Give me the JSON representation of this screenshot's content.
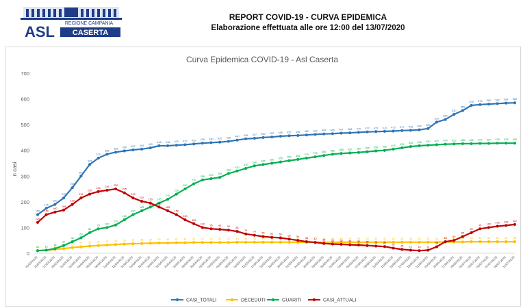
{
  "header": {
    "logo_line1": "REGIONE CAMPANIA",
    "logo_line2": "ASL",
    "logo_line3": "CASERTA",
    "title": "REPORT COVID-19 - CURVA EPIDEMICA",
    "subtitle": "Elaborazione effettuata alle ore 12:00 del 13/07/2020"
  },
  "colors": {
    "casi_totali": "#2e75b6",
    "deceduti": "#ffc000",
    "guariti": "#00b050",
    "casi_attuali": "#c00000"
  },
  "chart_data": {
    "type": "line",
    "title": "Curva Epidemica COVID-19 - Asl Caserta",
    "ylabel": "n casi",
    "xlabel": "",
    "ylim": [
      0,
      700
    ],
    "yticks": [
      0,
      100,
      200,
      300,
      400,
      500,
      600,
      700
    ],
    "grid": false,
    "legend_position": "bottom",
    "x": [
      "23/03/2020",
      "25/03/2020",
      "27/03/2020",
      "29/03/2020",
      "31/03/2020",
      "02/04/2020",
      "04/04/2020",
      "06/04/2020",
      "08/04/2020",
      "10/04/2020",
      "12/04/2020",
      "14/04/2020",
      "16/04/2020",
      "18/04/2020",
      "20/04/2020",
      "22/04/2020",
      "24/04/2020",
      "26/04/2020",
      "28/04/2020",
      "30/04/2020",
      "02/05/2020",
      "04/05/2020",
      "06/05/2020",
      "08/05/2020",
      "10/05/2020",
      "12/05/2020",
      "14/05/2020",
      "16/05/2020",
      "18/05/2020",
      "20/05/2020",
      "22/05/2020",
      "24/05/2020",
      "26/05/2020",
      "28/05/2020",
      "30/05/2020",
      "01/06/2020",
      "03/06/2020",
      "05/06/2020",
      "07/06/2020",
      "09/06/2020",
      "11/06/2020",
      "13/06/2020",
      "15/06/2020",
      "17/06/2020",
      "19/06/2020",
      "21/06/2020",
      "23/06/2020",
      "25/06/2020",
      "27/06/2020",
      "29/06/2020",
      "01/07/2020",
      "03/07/2020",
      "05/07/2020",
      "07/07/2020",
      "09/07/2020",
      "11/07/2020"
    ],
    "series": [
      {
        "name": "CASI_TOTALI",
        "values": [
          150,
          175,
          190,
          215,
          255,
          300,
          345,
          370,
          385,
          393,
          398,
          402,
          405,
          410,
          418,
          418,
          420,
          422,
          425,
          428,
          430,
          432,
          435,
          440,
          445,
          447,
          450,
          452,
          455,
          457,
          458,
          460,
          462,
          464,
          465,
          467,
          468,
          470,
          472,
          473,
          474,
          475,
          477,
          478,
          480,
          485,
          510,
          520,
          540,
          555,
          575,
          578,
          580,
          582,
          584,
          585
        ]
      },
      {
        "name": "DECEDUTI",
        "values": [
          10,
          12,
          15,
          18,
          22,
          25,
          28,
          30,
          32,
          34,
          36,
          37,
          38,
          39,
          40,
          40,
          41,
          41,
          42,
          42,
          42,
          42,
          42,
          43,
          43,
          43,
          43,
          43,
          43,
          43,
          43,
          43,
          43,
          43,
          43,
          43,
          43,
          43,
          43,
          43,
          43,
          43,
          43,
          43,
          43,
          43,
          43,
          44,
          44,
          44,
          45,
          45,
          45,
          45,
          45,
          45
        ]
      },
      {
        "name": "GUARITI",
        "values": [
          10,
          12,
          18,
          30,
          45,
          60,
          80,
          95,
          100,
          110,
          130,
          150,
          165,
          180,
          195,
          210,
          230,
          250,
          270,
          285,
          290,
          295,
          310,
          320,
          330,
          340,
          345,
          350,
          355,
          360,
          365,
          370,
          375,
          380,
          385,
          388,
          390,
          392,
          395,
          398,
          400,
          405,
          410,
          415,
          418,
          420,
          422,
          424,
          425,
          426,
          426,
          427,
          427,
          428,
          428,
          428
        ]
      },
      {
        "name": "CASI_ATTUALI",
        "values": [
          120,
          150,
          160,
          168,
          190,
          215,
          230,
          240,
          245,
          250,
          235,
          215,
          202,
          195,
          180,
          165,
          150,
          130,
          115,
          100,
          95,
          93,
          90,
          85,
          75,
          70,
          65,
          62,
          60,
          55,
          50,
          45,
          42,
          38,
          36,
          35,
          33,
          32,
          30,
          28,
          26,
          20,
          15,
          12,
          10,
          12,
          25,
          45,
          50,
          65,
          80,
          95,
          100,
          105,
          108,
          112
        ]
      }
    ]
  }
}
